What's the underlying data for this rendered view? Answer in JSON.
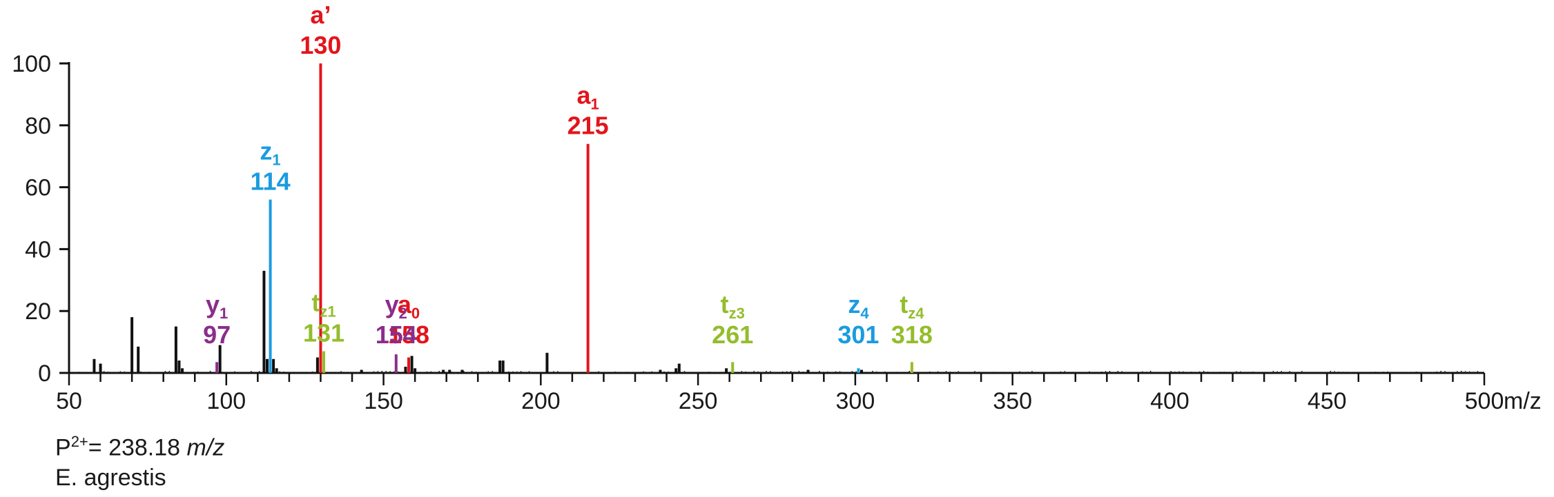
{
  "chart_data": {
    "type": "bar",
    "title": "",
    "xlabel": "m/z",
    "ylabel": "",
    "xlim": [
      50,
      500
    ],
    "ylim": [
      0,
      100
    ],
    "x_ticks": [
      50,
      100,
      150,
      200,
      250,
      300,
      350,
      400,
      450,
      500
    ],
    "y_ticks": [
      0,
      20,
      40,
      60,
      80,
      100
    ],
    "colors": {
      "a": "#e3141b",
      "z": "#1a9be0",
      "y": "#8b2d8c",
      "t": "#94bd2c",
      "other": "#111111"
    },
    "annotated_peaks": [
      {
        "series": "a",
        "ion": "a",
        "sub": "",
        "prime": "’",
        "mz": 130,
        "label": "130",
        "intensity": 100
      },
      {
        "series": "a",
        "ion": "a",
        "sub": "1",
        "prime": "",
        "mz": 215,
        "label": "215",
        "intensity": 74
      },
      {
        "series": "a",
        "ion": "a",
        "sub": "0",
        "prime": "",
        "mz": 158,
        "label": "158",
        "intensity": 5
      },
      {
        "series": "z",
        "ion": "z",
        "sub": "1",
        "prime": "",
        "mz": 114,
        "label": "114",
        "intensity": 56
      },
      {
        "series": "z",
        "ion": "z",
        "sub": "4",
        "prime": "",
        "mz": 301,
        "label": "301",
        "intensity": 1.5
      },
      {
        "series": "y",
        "ion": "y",
        "sub": "1",
        "prime": "",
        "mz": 97,
        "label": "97",
        "intensity": 3.5
      },
      {
        "series": "y",
        "ion": "y",
        "sub": "2",
        "prime": "",
        "mz": 154,
        "label": "154",
        "intensity": 6
      },
      {
        "series": "t",
        "ion": "t",
        "sub": "z1",
        "prime": "",
        "mz": 131,
        "label": "131",
        "intensity": 7
      },
      {
        "series": "t",
        "ion": "t",
        "sub": "z3",
        "prime": "",
        "mz": 261,
        "label": "261",
        "intensity": 3.5
      },
      {
        "series": "t",
        "ion": "t",
        "sub": "z4",
        "prime": "",
        "mz": 318,
        "label": "318",
        "intensity": 3.5
      }
    ],
    "unlabeled_peaks": [
      {
        "mz": 58,
        "intensity": 4.5
      },
      {
        "mz": 60,
        "intensity": 3
      },
      {
        "mz": 70,
        "intensity": 18
      },
      {
        "mz": 72,
        "intensity": 8.5
      },
      {
        "mz": 84,
        "intensity": 15
      },
      {
        "mz": 85,
        "intensity": 4
      },
      {
        "mz": 86,
        "intensity": 1.5
      },
      {
        "mz": 98,
        "intensity": 9
      },
      {
        "mz": 112,
        "intensity": 33
      },
      {
        "mz": 113,
        "intensity": 4.5
      },
      {
        "mz": 115,
        "intensity": 4.5
      },
      {
        "mz": 116,
        "intensity": 1.5
      },
      {
        "mz": 129,
        "intensity": 5
      },
      {
        "mz": 143,
        "intensity": 1
      },
      {
        "mz": 157,
        "intensity": 2
      },
      {
        "mz": 159,
        "intensity": 5.5
      },
      {
        "mz": 160,
        "intensity": 1.5
      },
      {
        "mz": 169,
        "intensity": 1
      },
      {
        "mz": 171,
        "intensity": 1
      },
      {
        "mz": 175,
        "intensity": 1
      },
      {
        "mz": 187,
        "intensity": 4
      },
      {
        "mz": 188,
        "intensity": 4
      },
      {
        "mz": 202,
        "intensity": 6.5
      },
      {
        "mz": 238,
        "intensity": 1
      },
      {
        "mz": 243,
        "intensity": 1.5
      },
      {
        "mz": 244,
        "intensity": 3
      },
      {
        "mz": 259,
        "intensity": 1.5
      },
      {
        "mz": 285,
        "intensity": 1
      },
      {
        "mz": 302,
        "intensity": 1
      }
    ],
    "x_unit_label": "m/z",
    "annotations": {
      "precursor_prefix": "P",
      "precursor_charge": "2+",
      "precursor_value": "= 238.18",
      "precursor_unit": "m/z",
      "species": "E. agrestis"
    }
  }
}
